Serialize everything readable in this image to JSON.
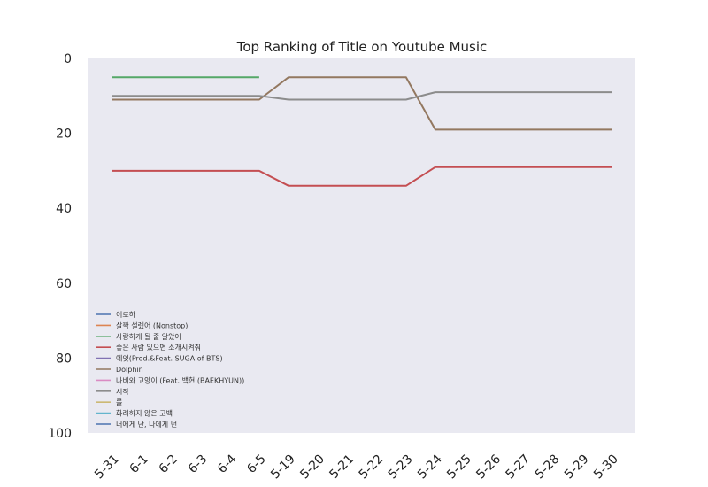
{
  "chart_data": {
    "type": "line",
    "title": "Top Ranking of Title on Youtube Music",
    "xlabel": "",
    "ylabel": "",
    "categories": [
      "5-31",
      "6-1",
      "6-2",
      "6-3",
      "6-4",
      "6-5",
      "5-19",
      "5-20",
      "5-21",
      "5-22",
      "5-23",
      "5-24",
      "5-25",
      "5-26",
      "5-27",
      "5-28",
      "5-29",
      "5-30"
    ],
    "ylim": [
      100,
      0
    ],
    "yticks": [
      0,
      20,
      40,
      60,
      80,
      100
    ],
    "y_inverted": true,
    "grid": false,
    "legend_position": "lower-left",
    "background": "#e9e9f1",
    "series": [
      {
        "name": "이로하",
        "color": "#4c72b0",
        "points": []
      },
      {
        "name": "살짝 설렜어 (Nonstop)",
        "color": "#dd8452",
        "points": []
      },
      {
        "name": "사랑하게 될 줄 알았어",
        "color": "#55a868",
        "points": [
          [
            "5-31",
            5
          ],
          [
            "6-5",
            5
          ]
        ]
      },
      {
        "name": "좋은 사람 있으면 소개시켜줘",
        "color": "#c44e52",
        "points": [
          [
            "5-31",
            30
          ],
          [
            "6-5",
            30
          ],
          [
            "5-19",
            34
          ],
          [
            "5-23",
            34
          ],
          [
            "5-24",
            29
          ],
          [
            "5-30",
            29
          ]
        ]
      },
      {
        "name": "에잇(Prod.&Feat. SUGA of BTS)",
        "color": "#8172b3",
        "points": []
      },
      {
        "name": "Dolphin",
        "color": "#937860",
        "points": [
          [
            "5-31",
            11
          ],
          [
            "6-5",
            11
          ],
          [
            "5-19",
            5
          ],
          [
            "5-23",
            5
          ],
          [
            "5-24",
            19
          ],
          [
            "5-30",
            19
          ]
        ]
      },
      {
        "name": "나비와 고양이 (Feat. 백현 (BAEKHYUN))",
        "color": "#da8bc3",
        "points": []
      },
      {
        "name": "시작",
        "color": "#8c8c8c",
        "points": [
          [
            "5-31",
            10
          ],
          [
            "6-5",
            10
          ],
          [
            "5-19",
            11
          ],
          [
            "5-23",
            11
          ],
          [
            "5-24",
            9
          ],
          [
            "5-30",
            9
          ]
        ]
      },
      {
        "name": "롤",
        "color": "#ccb974",
        "points": []
      },
      {
        "name": "화려하지 않은 고백",
        "color": "#64b5cd",
        "points": []
      },
      {
        "name": "너에게 난, 나에게 넌",
        "color": "#4c72b0",
        "points": []
      }
    ]
  }
}
